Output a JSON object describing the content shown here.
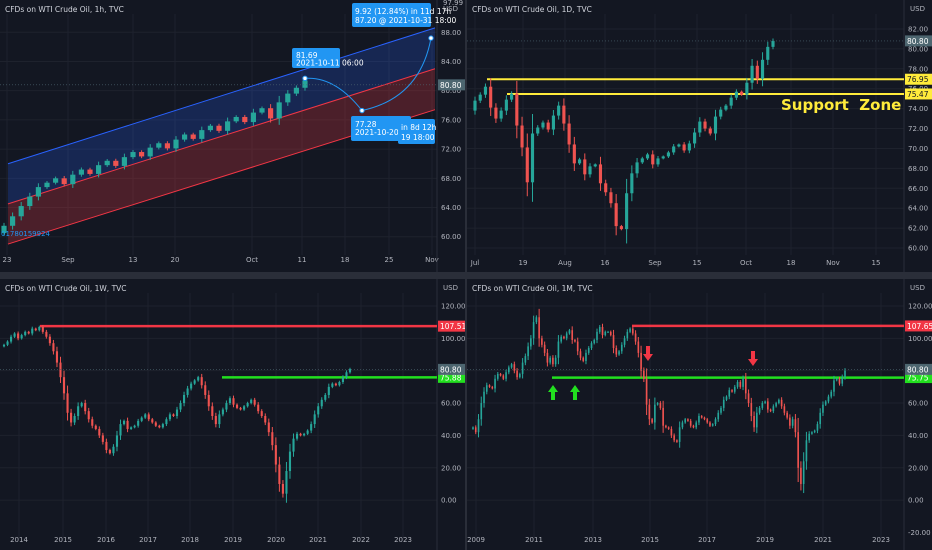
{
  "colors": {
    "background": "#131722",
    "grid": "#1e222d",
    "axis_text": "#b2b5be",
    "candle_up": "#26a69a",
    "candle_down": "#ef5350",
    "yellow": "#ffeb3b",
    "red_line": "#f23645",
    "green_line": "#22e01f",
    "channel_blue": "#2962ff",
    "channel_red": "#f23645",
    "price_tag": "#4d6670",
    "info_blue": "#2196f3",
    "annotation_text": "#ffeb3b"
  },
  "chart_data": [
    {
      "id": "tl",
      "type": "candlestick",
      "title": "CFDs on WTI Crude Oil, 1h, TVC",
      "currency": "USD",
      "x_ticks": [
        "23",
        "Sep",
        "13",
        "20",
        "Oct",
        "11",
        "18",
        "25",
        "Nov"
      ],
      "y_ticks": [
        60.0,
        64.0,
        68.0,
        72.0,
        76.0,
        80.0,
        84.0,
        88.0
      ],
      "ylim": [
        57.5,
        90.5
      ],
      "last_price": "80.80",
      "top_partial_tick": "97.99",
      "bottom_left_label": "01780159924",
      "channel": {
        "upper_fill": "#2962ff",
        "lower_fill": "#f23645"
      },
      "annotations": [
        {
          "label": "81.69",
          "sub": "2021-10-11 06:00"
        },
        {
          "label": "9.92 (12.84%) in 11d 17h",
          "sub": "87.20 @ 2021-10-31  18:00"
        },
        {
          "label": "77.28",
          "sub": "2021-10-20 04:00",
          "extra": "in 8d 12h",
          "extra_sub": "19  18:00"
        }
      ],
      "series": [
        {
          "values": [
            61.5,
            62.8,
            64.2,
            65.5,
            66.8,
            67.4,
            68.0,
            67.2,
            68.5,
            69.2,
            68.6,
            69.8,
            70.4,
            69.7,
            70.9,
            71.6,
            71.0,
            72.2,
            72.8,
            72.1,
            73.3,
            74.0,
            73.4,
            74.6,
            75.2,
            74.5,
            75.8,
            76.4,
            75.7,
            77.0,
            77.6,
            76.2,
            78.4,
            79.6,
            80.4,
            81.4
          ]
        }
      ]
    },
    {
      "id": "tr",
      "type": "candlestick",
      "title": "CFDs on WTI Crude Oil, 1D, TVC",
      "currency": "USD",
      "x_ticks": [
        "Jul",
        "19",
        "Aug",
        "16",
        "Sep",
        "15",
        "Oct",
        "18",
        "Nov",
        "15"
      ],
      "y_ticks": [
        60.0,
        62.0,
        64.0,
        66.0,
        68.0,
        70.0,
        72.0,
        74.0,
        76.0,
        78.0,
        80.0,
        82.0
      ],
      "ylim": [
        59.3,
        83.5
      ],
      "last_price": "80.80",
      "levels": [
        {
          "value": "76.95"
        },
        {
          "value": "75.47"
        }
      ],
      "annotation": "Support  Zone",
      "series": [
        {
          "values": [
            74.8,
            75.4,
            76.2,
            74.1,
            73.0,
            73.8,
            74.9,
            75.5,
            72.3,
            70.1,
            66.6,
            71.5,
            72.1,
            72.6,
            71.9,
            73.3,
            74.3,
            72.5,
            70.4,
            68.5,
            68.9,
            67.4,
            68.2,
            68.4,
            66.5,
            65.6,
            64.5,
            62.2,
            61.9,
            65.5,
            67.5,
            68.6,
            69.0,
            69.4,
            68.4,
            69.0,
            69.2,
            69.6,
            70.2,
            70.4,
            69.8,
            70.5,
            71.6,
            72.7,
            72.0,
            71.5,
            73.2,
            73.9,
            74.3,
            75.1,
            75.7,
            75.4,
            76.6,
            78.3,
            77.0,
            78.9,
            80.2,
            80.8
          ]
        }
      ]
    },
    {
      "id": "bl",
      "type": "candlestick",
      "title": "CFDs on WTI Crude Oil, 1W, TVC",
      "currency": "USD",
      "x_ticks": [
        "2014",
        "2015",
        "2016",
        "2017",
        "2018",
        "2019",
        "2020",
        "2021",
        "2022",
        "2023"
      ],
      "y_ticks": [
        0.0,
        20.0,
        40.0,
        60.0,
        80.0,
        100.0,
        120.0
      ],
      "ylim": [
        -24,
        128
      ],
      "last_price": "80.80",
      "levels": [
        {
          "value": "107.51",
          "color": "red"
        },
        {
          "value": "75.88",
          "color": "green"
        }
      ],
      "series": [
        {
          "values": [
            96,
            98,
            101,
            103,
            100,
            102,
            104,
            103,
            106,
            105,
            107,
            104,
            101,
            97,
            92,
            85,
            76,
            66,
            54,
            48,
            52,
            58,
            60,
            55,
            50,
            46,
            44,
            40,
            36,
            31,
            29,
            33,
            40,
            47,
            49,
            44,
            45,
            46,
            49,
            51,
            53,
            50,
            48,
            46,
            45,
            47,
            50,
            53,
            52,
            56,
            60,
            65,
            69,
            72,
            74,
            76,
            71,
            65,
            58,
            52,
            47,
            53,
            56,
            60,
            63,
            59,
            57,
            56,
            58,
            60,
            62,
            59,
            55,
            52,
            48,
            42,
            34,
            22,
            10,
            4,
            18,
            30,
            38,
            41,
            40,
            41,
            43,
            47,
            53,
            58,
            62,
            65,
            70,
            72,
            71,
            73,
            76,
            79,
            81
          ]
        }
      ]
    },
    {
      "id": "br",
      "type": "candlestick",
      "title": "CFDs on WTI Crude Oil, 1M, TVC",
      "currency": "USD",
      "x_ticks": [
        "2009",
        "2011",
        "2013",
        "2015",
        "2017",
        "2019",
        "2021",
        "2023"
      ],
      "y_ticks": [
        0.0,
        20.0,
        40.0,
        60.0,
        80.0,
        100.0,
        120.0
      ],
      "ylim": [
        -24,
        128
      ],
      "bottom_partial_tick": "-20.00",
      "last_price": "80.80",
      "levels": [
        {
          "value": "107.65",
          "color": "red"
        },
        {
          "value": "75.75",
          "color": "green"
        }
      ],
      "series": [
        {
          "values": [
            45,
            42,
            50,
            60,
            67,
            71,
            70,
            69,
            75,
            78,
            77,
            75,
            79,
            82,
            84,
            80,
            76,
            78,
            85,
            89,
            95,
            100,
            110,
            113,
            100,
            96,
            91,
            85,
            88,
            84,
            88,
            98,
            101,
            100,
            103,
            105,
            99,
            98,
            92,
            88,
            86,
            91,
            94,
            97,
            99,
            104,
            107,
            102,
            104,
            104,
            102,
            94,
            90,
            92,
            96,
            100,
            104,
            106,
            103,
            98,
            91,
            80,
            75,
            59,
            50,
            48,
            59,
            60,
            57,
            46,
            45,
            44,
            40,
            37,
            36,
            45,
            48,
            50,
            49,
            46,
            45,
            48,
            52,
            51,
            50,
            48,
            46,
            47,
            50,
            54,
            57,
            62,
            64,
            68,
            67,
            70,
            73,
            70,
            75,
            66,
            60,
            52,
            45,
            54,
            57,
            60,
            61,
            56,
            55,
            58,
            60,
            62,
            58,
            54,
            51,
            46,
            50,
            42,
            20,
            10,
            24,
            37,
            41,
            42,
            43,
            47,
            54,
            59,
            61,
            64,
            67,
            74,
            75,
            72,
            76,
            80
          ]
        }
      ]
    }
  ]
}
